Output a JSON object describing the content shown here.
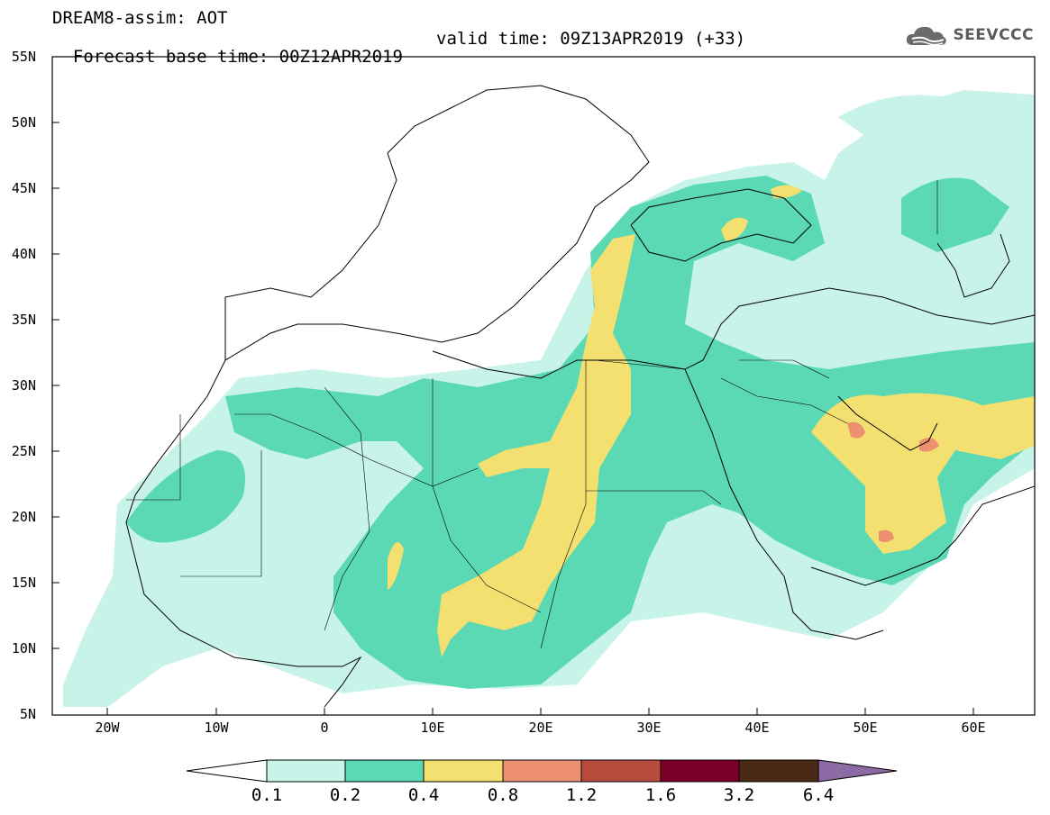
{
  "header": {
    "title_line1": "DREAM8-assim: AOT",
    "base_time": "Forecast base time: 00Z12APR2019",
    "valid_time": "valid time: 09Z13APR2019 (+33)",
    "logo_text": "SEEVCCC",
    "logo_icon": "cloud-icon"
  },
  "map": {
    "projection": "lat-lon",
    "lon_range": [
      -25,
      65
    ],
    "lat_range": [
      5,
      55
    ],
    "lat_ticks": [
      "55N",
      "50N",
      "45N",
      "40N",
      "35N",
      "30N",
      "25N",
      "20N",
      "15N",
      "10N",
      "5N"
    ],
    "lon_ticks": [
      "20W",
      "10W",
      "0",
      "10E",
      "20E",
      "30E",
      "40E",
      "50E",
      "60E"
    ],
    "field": "Aerosol optical thickness"
  },
  "colorbar": {
    "labels": [
      "0.1",
      "0.2",
      "0.4",
      "0.8",
      "1.2",
      "1.6",
      "3.2",
      "6.4"
    ],
    "colors": [
      "#ffffff",
      "#c8f3e9",
      "#5ad9b4",
      "#f4e070",
      "#ec9070",
      "#b84c3c",
      "#7a0028",
      "#4a2a14",
      "#8c6aa4"
    ]
  }
}
